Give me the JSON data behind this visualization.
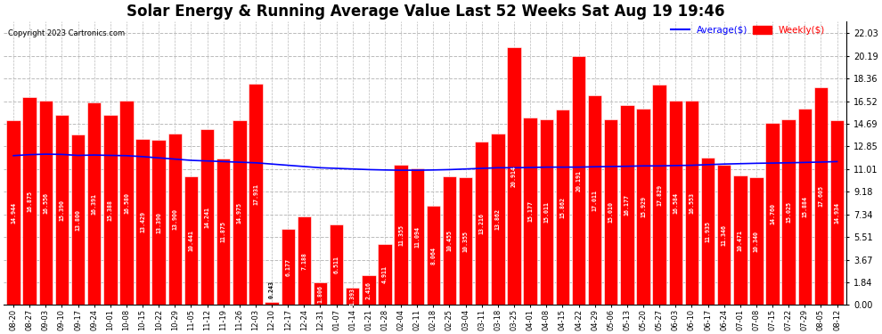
{
  "title": "Solar Energy & Running Average Value Last 52 Weeks Sat Aug 19 19:46",
  "copyright": "Copyright 2023 Cartronics.com",
  "categories": [
    "08-20",
    "08-27",
    "09-03",
    "09-10",
    "09-17",
    "09-24",
    "10-01",
    "10-08",
    "10-15",
    "10-22",
    "10-29",
    "11-05",
    "11-12",
    "11-19",
    "11-26",
    "12-03",
    "12-10",
    "12-17",
    "12-24",
    "12-31",
    "01-07",
    "01-14",
    "01-21",
    "01-28",
    "02-04",
    "02-11",
    "02-18",
    "02-25",
    "03-04",
    "03-11",
    "03-18",
    "03-25",
    "04-01",
    "04-08",
    "04-15",
    "04-22",
    "04-29",
    "05-06",
    "05-13",
    "05-20",
    "05-27",
    "06-03",
    "06-10",
    "06-17",
    "06-24",
    "07-01",
    "07-08",
    "07-15",
    "07-22",
    "07-29",
    "08-05",
    "08-12"
  ],
  "weekly_full": [
    14.944,
    16.875,
    16.556,
    15.39,
    13.8,
    16.391,
    15.388,
    16.58,
    13.429,
    13.39,
    13.9,
    10.441,
    14.241,
    11.875,
    14.975,
    17.931,
    0.243,
    6.177,
    7.188,
    1.806,
    6.511,
    1.393,
    2.416,
    4.911,
    11.355,
    11.094,
    8.064,
    10.455,
    10.355,
    13.216,
    13.862,
    20.914,
    15.177,
    15.011,
    15.862,
    20.191,
    17.011,
    15.01,
    16.177,
    15.929,
    17.829,
    16.584,
    16.553,
    11.935,
    11.346,
    10.471,
    10.34,
    14.76,
    15.025,
    15.884,
    17.605,
    14.934
  ],
  "avg_full": [
    12.1,
    12.18,
    12.22,
    12.2,
    12.12,
    12.15,
    12.12,
    12.1,
    12.02,
    11.92,
    11.82,
    11.72,
    11.67,
    11.62,
    11.57,
    11.52,
    11.42,
    11.32,
    11.22,
    11.12,
    11.07,
    11.02,
    10.97,
    10.94,
    10.92,
    10.92,
    10.94,
    10.97,
    11.02,
    11.07,
    11.12,
    11.12,
    11.14,
    11.17,
    11.17,
    11.17,
    11.2,
    11.22,
    11.24,
    11.27,
    11.27,
    11.3,
    11.32,
    11.37,
    11.42,
    11.45,
    11.48,
    11.5,
    11.52,
    11.55,
    11.58,
    11.62
  ],
  "bar_color": "#ff0000",
  "bar_edge_color": "#ffffff",
  "avg_line_color": "#0000ff",
  "background_color": "#ffffff",
  "grid_color": "#bbbbbb",
  "yticks": [
    0.0,
    1.84,
    3.67,
    5.51,
    7.34,
    9.18,
    11.01,
    12.85,
    14.69,
    16.52,
    18.36,
    20.19,
    22.03
  ],
  "ylim": [
    0,
    23.0
  ],
  "title_fontsize": 12,
  "tick_fontsize": 6.0,
  "value_fontsize": 4.8,
  "legend_avg_label": "Average($)",
  "legend_weekly_label": "Weekly($)"
}
